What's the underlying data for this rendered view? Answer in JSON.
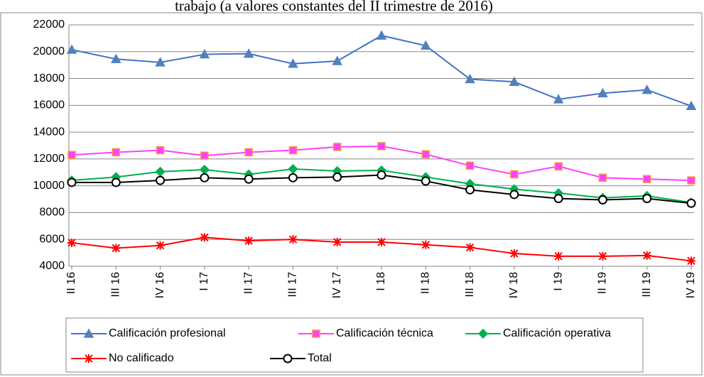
{
  "chart_data": {
    "type": "line",
    "title": "trabajo (a valores constantes del II trimestre de 2016)",
    "categories": [
      "II 16",
      "III 16",
      "IV 16",
      "I 17",
      "II 17",
      "III 17",
      "IV 17",
      "I 18",
      "II 18",
      "III 18",
      "IV 18",
      "I 19",
      "II 19",
      "III 19",
      "IV 19"
    ],
    "ylim": [
      4000,
      22000
    ],
    "yticks": [
      4000,
      6000,
      8000,
      10000,
      12000,
      14000,
      16000,
      18000,
      20000,
      22000
    ],
    "grid": true,
    "legend": "bottom",
    "series": [
      {
        "name": "Calificación profesional",
        "color": "#4472c4",
        "marker": "triangle",
        "marker_fill": "#4f81bd",
        "marker_edge": "#4f81bd",
        "values": [
          20150,
          19450,
          19200,
          19800,
          19850,
          19100,
          19300,
          21200,
          20450,
          17950,
          17750,
          16450,
          16900,
          17150,
          15950
        ]
      },
      {
        "name": "Calificación técnica",
        "color": "#ff40ff",
        "marker": "square",
        "marker_fill": "#ff40ff",
        "marker_edge": "#f79646",
        "values": [
          12300,
          12500,
          12650,
          12250,
          12500,
          12650,
          12900,
          12950,
          12350,
          11500,
          10850,
          11450,
          10600,
          10500,
          10400
        ]
      },
      {
        "name": "Calificación operativa",
        "color": "#00b050",
        "marker": "diamond",
        "marker_fill": "#00b050",
        "marker_edge": "#00b050",
        "values": [
          10400,
          10650,
          11050,
          11200,
          10850,
          11250,
          11100,
          11150,
          10650,
          10150,
          9750,
          9450,
          9100,
          9250,
          8750
        ]
      },
      {
        "name": "No calificado",
        "color": "#ff0000",
        "marker": "star",
        "marker_fill": "#ff0000",
        "marker_edge": "#ff0000",
        "values": [
          5750,
          5350,
          5550,
          6150,
          5900,
          6000,
          5800,
          5800,
          5600,
          5400,
          4950,
          4750,
          4750,
          4800,
          4400
        ]
      },
      {
        "name": "Total",
        "color": "#000000",
        "marker": "circle",
        "marker_fill": "#ffffff",
        "marker_edge": "#000000",
        "values": [
          10250,
          10250,
          10400,
          10600,
          10500,
          10600,
          10650,
          10800,
          10350,
          9700,
          9350,
          9050,
          8950,
          9050,
          8700
        ]
      }
    ]
  }
}
